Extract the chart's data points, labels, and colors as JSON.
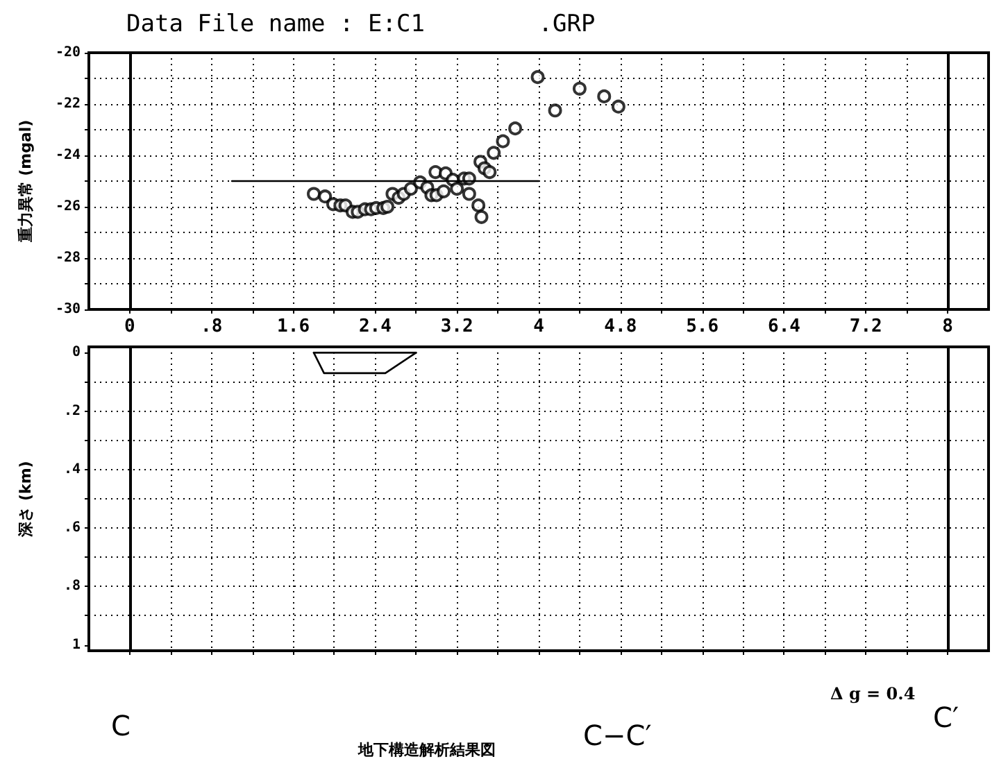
{
  "chart_data": [
    {
      "type": "scatter",
      "title": "Data File name : E:C1        .GRP",
      "ylabel": "重力異常 (mgal)",
      "xlim": [
        -0.4,
        8.4
      ],
      "ylim": [
        -30,
        -20
      ],
      "xticks": [
        0,
        {
          "value": 0.4,
          "label": null
        },
        {
          "value": 0.8,
          "label": ".8"
        },
        {
          "value": 1.2,
          "label": null
        },
        1.6,
        {
          "value": 2.0,
          "label": null
        },
        2.4,
        {
          "value": 2.8,
          "label": null
        },
        3.2,
        {
          "value": 3.6,
          "label": null
        },
        4,
        {
          "value": 4.4,
          "label": null
        },
        4.8,
        {
          "value": 5.2,
          "label": null
        },
        5.6,
        {
          "value": 6.0,
          "label": null
        },
        6.4,
        {
          "value": 6.8,
          "label": null
        },
        7.2,
        {
          "value": 7.6,
          "label": null
        },
        8
      ],
      "yticks": [
        -30,
        {
          "value": -29,
          "label": null
        },
        -28,
        {
          "value": -27,
          "label": null
        },
        -26,
        {
          "value": -25,
          "label": null
        },
        -24,
        {
          "value": -23,
          "label": null
        },
        -22,
        {
          "value": -21,
          "label": null
        },
        -20
      ],
      "grid": true,
      "series": [
        {
          "color": "#000000",
          "marker": "circle",
          "x": [
            1.8,
            1.91,
            1.99,
            2.06,
            2.11,
            2.18,
            2.23,
            2.3,
            2.36,
            2.41,
            2.48,
            2.52,
            2.57,
            2.63,
            2.68,
            2.75,
            2.84,
            2.91,
            2.95,
            2.99,
            3.0,
            3.07,
            3.09,
            3.16,
            3.2,
            3.27,
            3.32,
            3.32,
            3.41,
            3.44,
            3.43,
            3.47,
            3.52,
            3.56,
            3.65,
            3.77,
            3.99,
            4.16,
            4.4,
            4.64,
            4.78
          ],
          "values": [
            -25.5,
            -25.6,
            -25.9,
            -25.95,
            -25.95,
            -26.2,
            -26.2,
            -26.1,
            -26.1,
            -26.05,
            -26.05,
            -26.0,
            -25.5,
            -25.65,
            -25.5,
            -25.3,
            -25.05,
            -25.25,
            -25.55,
            -24.65,
            -25.55,
            -25.4,
            -24.7,
            -24.95,
            -25.3,
            -24.9,
            -24.9,
            -25.5,
            -25.95,
            -26.4,
            -24.25,
            -24.5,
            -24.65,
            -23.9,
            -23.45,
            -22.95,
            -20.95,
            -22.25,
            -21.4,
            -21.7,
            -22.1
          ]
        },
        {
          "type": "line",
          "color": "#000000",
          "marker": "none",
          "line_style": "solid",
          "x": [
            1.0,
            4.0
          ],
          "values": [
            -25,
            -25
          ]
        }
      ],
      "ref_lines": [
        {
          "axis": "x",
          "value": 0,
          "color": "#000000",
          "line_style": "solid"
        },
        {
          "axis": "x",
          "value": 8,
          "color": "#000000",
          "line_style": "solid"
        }
      ]
    },
    {
      "type": "line",
      "ylabel": "深さ (km)",
      "xlim": [
        -0.4,
        8.4
      ],
      "ylim": [
        1.02,
        -0.02
      ],
      "tick_labels": "y",
      "xticks": [
        0,
        0.4,
        0.8,
        1.2,
        1.6,
        2.0,
        2.4,
        2.8,
        3.2,
        3.6,
        4,
        4.4,
        4.8,
        5.2,
        5.6,
        6.0,
        6.4,
        6.8,
        7.2,
        7.6,
        8
      ],
      "yticks": [
        0,
        {
          "value": 0.1,
          "label": null
        },
        {
          "value": 0.2,
          "label": ".2"
        },
        {
          "value": 0.3,
          "label": null
        },
        {
          "value": 0.4,
          "label": ".4"
        },
        {
          "value": 0.5,
          "label": null
        },
        {
          "value": 0.6,
          "label": ".6"
        },
        {
          "value": 0.7,
          "label": null
        },
        {
          "value": 0.8,
          "label": ".8"
        },
        {
          "value": 0.9,
          "label": null
        },
        1
      ],
      "grid": true,
      "series": [
        {
          "color": "#000000",
          "marker": "none",
          "line_style": "solid",
          "x": [
            1.8,
            1.9,
            2.5,
            2.8
          ],
          "values": [
            0,
            0.07,
            0.07,
            0
          ]
        },
        {
          "color": "#000000",
          "marker": "none",
          "line_style": "solid",
          "x": [
            1.8,
            2.8
          ],
          "values": [
            0,
            0
          ]
        }
      ],
      "ref_lines": [
        {
          "axis": "x",
          "value": 0,
          "color": "#000000",
          "line_style": "solid"
        },
        {
          "axis": "x",
          "value": 8,
          "color": "#000000",
          "line_style": "solid"
        }
      ],
      "annotations": [
        "Δ g = 0.4",
        "C",
        "地下構造解析結果図",
        "C−C′",
        "C′"
      ]
    }
  ]
}
